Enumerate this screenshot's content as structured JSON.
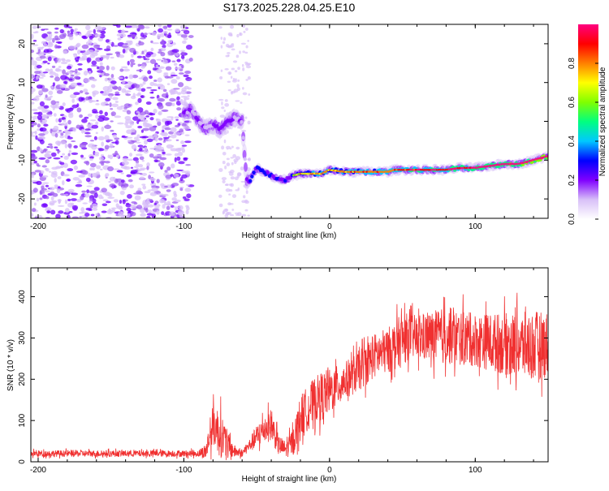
{
  "title": "S173.2025.228.04.25.E10",
  "chart_data": [
    {
      "type": "heatmap",
      "name": "spectrogram",
      "xlabel": "Height of straight line (km)",
      "ylabel": "Frequency (Hz)",
      "xlim": [
        -205,
        150
      ],
      "ylim": [
        -25,
        25
      ],
      "xticks": [
        -200,
        -100,
        0,
        100
      ],
      "yticks": [
        -20,
        -10,
        0,
        10,
        20
      ],
      "colorbar": {
        "label": "Normalized spectral amplitude",
        "range": [
          0,
          1
        ],
        "ticks": [
          0.0,
          0.2,
          0.4,
          0.6,
          0.8
        ],
        "tick_labels": [
          "0.0",
          "0.2",
          "0.4",
          "0.6",
          "0.8"
        ],
        "colors": [
          "#ffffff",
          "#d8c0f8",
          "#8000ff",
          "#0000ff",
          "#00c8ff",
          "#00ff80",
          "#80ff00",
          "#ffff00",
          "#ff8000",
          "#ff0000",
          "#ff0080"
        ]
      },
      "ridge": {
        "x": [
          -100,
          -95,
          -90,
          -85,
          -80,
          -75,
          -70,
          -65,
          -60,
          -57,
          -55,
          -50,
          -45,
          -40,
          -35,
          -30,
          -25,
          -20,
          -15,
          -10,
          -5,
          0,
          10,
          20,
          30,
          40,
          45,
          50,
          60,
          70,
          80,
          90,
          100,
          110,
          120,
          130,
          140,
          150
        ],
        "y": [
          2,
          3,
          0,
          -2,
          -1,
          -2,
          0,
          1,
          0,
          -15,
          -15.5,
          -12,
          -13,
          -14,
          -15,
          -15,
          -14,
          -13.5,
          -13.5,
          -13.5,
          -13.5,
          -12.5,
          -13,
          -13,
          -13,
          -13,
          -12.5,
          -12.5,
          -12.5,
          -12.5,
          -12.5,
          -12,
          -12,
          -11.5,
          -11,
          -11,
          -10,
          -9
        ]
      },
      "noise_region_x": [
        -205,
        -95
      ]
    },
    {
      "type": "line",
      "name": "snr",
      "xlabel": "Height of straight line (km)",
      "ylabel": "SNR (10 * v/v)",
      "xlim": [
        -205,
        150
      ],
      "ylim": [
        0,
        470
      ],
      "xticks": [
        -200,
        -100,
        0,
        100
      ],
      "yticks": [
        0,
        100,
        200,
        300,
        400
      ],
      "series": [
        {
          "name": "SNR",
          "color": "#f03030",
          "envelope": {
            "x": [
              -205,
              -100,
              -90,
              -85,
              -80,
              -75,
              -70,
              -65,
              -60,
              -55,
              -50,
              -45,
              -40,
              -35,
              -30,
              -25,
              -20,
              -15,
              -10,
              -5,
              0,
              10,
              20,
              30,
              40,
              50,
              55,
              60,
              80,
              100,
              120,
              140,
              150
            ],
            "mean": [
              20,
              20,
              20,
              25,
              90,
              70,
              40,
              25,
              20,
              40,
              60,
              80,
              90,
              40,
              30,
              50,
              110,
              130,
              150,
              160,
              170,
              195,
              220,
              255,
              270,
              295,
              305,
              300,
              305,
              295,
              285,
              280,
              285
            ],
            "spread": [
              8,
              8,
              8,
              20,
              50,
              60,
              35,
              15,
              8,
              15,
              30,
              35,
              40,
              25,
              20,
              35,
              50,
              55,
              55,
              60,
              55,
              45,
              50,
              55,
              55,
              65,
              55,
              55,
              70,
              65,
              75,
              85,
              80
            ]
          }
        }
      ]
    }
  ]
}
